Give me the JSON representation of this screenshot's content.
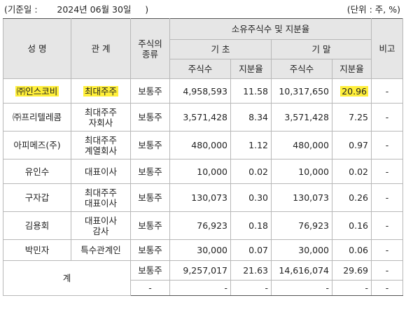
{
  "header_line": {
    "base_date": "(기준일 :       2024년 06월 30일     )",
    "unit": "(단위 : 주, %)"
  },
  "table": {
    "headers": {
      "name": "성 명",
      "relation": "관 계",
      "stock_type": "주식의\n종류",
      "ownership": "소유주식수 및 지분율",
      "begin": "기 초",
      "end": "기 말",
      "shares": "주식수",
      "ratio": "지분율",
      "note": "비고"
    },
    "rows": [
      {
        "name": "㈜인스코비",
        "relation": "최대주주",
        "type": "보통주",
        "begin_shares": "4,958,593",
        "begin_ratio": "11.58",
        "end_shares": "10,317,650",
        "end_ratio": "20.96",
        "note": "-"
      },
      {
        "name": "㈜프리텔레콤",
        "relation": "최대주주\n자회사",
        "type": "보통주",
        "begin_shares": "3,571,428",
        "begin_ratio": "8.34",
        "end_shares": "3,571,428",
        "end_ratio": "7.25",
        "note": "-"
      },
      {
        "name": "아피메즈(주)",
        "relation": "최대주주\n계열회사",
        "type": "보통주",
        "begin_shares": "480,000",
        "begin_ratio": "1.12",
        "end_shares": "480,000",
        "end_ratio": "0.97",
        "note": "-"
      },
      {
        "name": "유인수",
        "relation": "대표이사",
        "type": "보통주",
        "begin_shares": "10,000",
        "begin_ratio": "0.02",
        "end_shares": "10,000",
        "end_ratio": "0.02",
        "note": "-"
      },
      {
        "name": "구자갑",
        "relation": "최대주주\n대표이사",
        "type": "보통주",
        "begin_shares": "130,073",
        "begin_ratio": "0.30",
        "end_shares": "130,073",
        "end_ratio": "0.26",
        "note": "-"
      },
      {
        "name": "김용회",
        "relation": "대표이사\n감사",
        "type": "보통주",
        "begin_shares": "76,923",
        "begin_ratio": "0.18",
        "end_shares": "76,923",
        "end_ratio": "0.16",
        "note": "-"
      },
      {
        "name": "박민자",
        "relation": "특수관계인",
        "type": "보통주",
        "begin_shares": "30,000",
        "begin_ratio": "0.07",
        "end_shares": "30,000",
        "end_ratio": "0.06",
        "note": "-"
      }
    ],
    "total": {
      "label": "계",
      "rows": [
        {
          "type": "보통주",
          "begin_shares": "9,257,017",
          "begin_ratio": "21.63",
          "end_shares": "14,616,074",
          "end_ratio": "29.69",
          "note": "-"
        },
        {
          "type": "-",
          "begin_shares": "-",
          "begin_ratio": "-",
          "end_shares": "-",
          "end_ratio": "-",
          "note": "-"
        }
      ]
    }
  },
  "colors": {
    "header_bg": "#e6e6e6",
    "highlight": "#ffef3a",
    "border": "#b8b8b8"
  }
}
